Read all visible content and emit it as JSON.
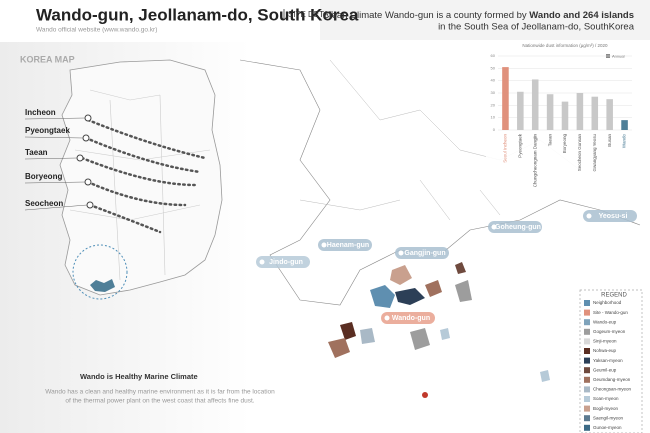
{
  "header": {
    "title": "Wando-gun, Jeollanam-do, South Korea",
    "tag": "SITE DETAIL",
    "subtitle": "Wando official website (www.wando.go.kr)"
  },
  "description": {
    "line1_start": "Clean Climate Wando-gun is a county formed by ",
    "line1_bold": "Wando and 264 islands",
    "line2": "in the South Sea of Jeollanam-do, SouthKorea"
  },
  "korea_map": {
    "title": "KOREA MAP",
    "cities": [
      "Incheon",
      "Pyeongtaek",
      "Taean",
      "Boryeong",
      "Seocheon"
    ]
  },
  "map_labels": [
    "Jindo-gun",
    "Haenam-gun",
    "Gangjin-gun",
    "Goheung-gun",
    "Yeosu-si",
    "Wando-gun"
  ],
  "note": {
    "title": "Wando is Healthy Marine Climate",
    "body_line1": "Wando has a clean and healthy marine environment as it is far from the location",
    "body_line2": "of the thermal power plant on the west coast that affects fine dust."
  },
  "chart_data": {
    "type": "bar",
    "title": "Nationwide dust information (μg/m³) / 2020",
    "legend": "Annual",
    "categories": [
      "Seoul Incheon",
      "Pyeongtaek",
      "Chungcheongnam Dangjin",
      "Taean",
      "Boryeong",
      "Seocheon Gunsan",
      "Gwangyang Yeosu",
      "Busan",
      "Wando"
    ],
    "values": [
      51,
      31,
      41,
      29,
      23,
      30,
      27,
      25,
      8
    ],
    "colors": [
      "#e0917c",
      "#c8c8c8",
      "#c8c8c8",
      "#c8c8c8",
      "#c8c8c8",
      "#c8c8c8",
      "#c8c8c8",
      "#c8c8c8",
      "#4f7f98"
    ],
    "ylim": [
      0,
      60
    ],
    "yticks": [
      0,
      10,
      20,
      30,
      40,
      50,
      60
    ],
    "grid": true
  },
  "legend": {
    "title": "REGEND",
    "items": [
      {
        "label": "Neighborhood",
        "color": "#5f8fb0"
      },
      {
        "label": "Site - Wando-gun",
        "color": "#e0917c"
      },
      {
        "label": "Wando-eup",
        "color": "#7fa3bb"
      },
      {
        "label": "Gogeum-myeon",
        "color": "#9d9d9d"
      },
      {
        "label": "Sinji-myeon",
        "color": "#d9d9d9"
      },
      {
        "label": "Nohwa-eup",
        "color": "#5a2e22"
      },
      {
        "label": "Yaksan-myeon",
        "color": "#2c3f57"
      },
      {
        "label": "Geumil-eup",
        "color": "#6f4a3e"
      },
      {
        "label": "Geumdang-myeon",
        "color": "#a0715e"
      },
      {
        "label": "Cheongsan-myeon",
        "color": "#a9b9c6"
      },
      {
        "label": "Soan-myeon",
        "color": "#b6cad8"
      },
      {
        "label": "Bogil-myeon",
        "color": "#c9a08e"
      },
      {
        "label": "Saengil-myeon",
        "color": "#5c7a90"
      },
      {
        "label": "Gunoe-myeon",
        "color": "#3c6a86"
      }
    ]
  }
}
